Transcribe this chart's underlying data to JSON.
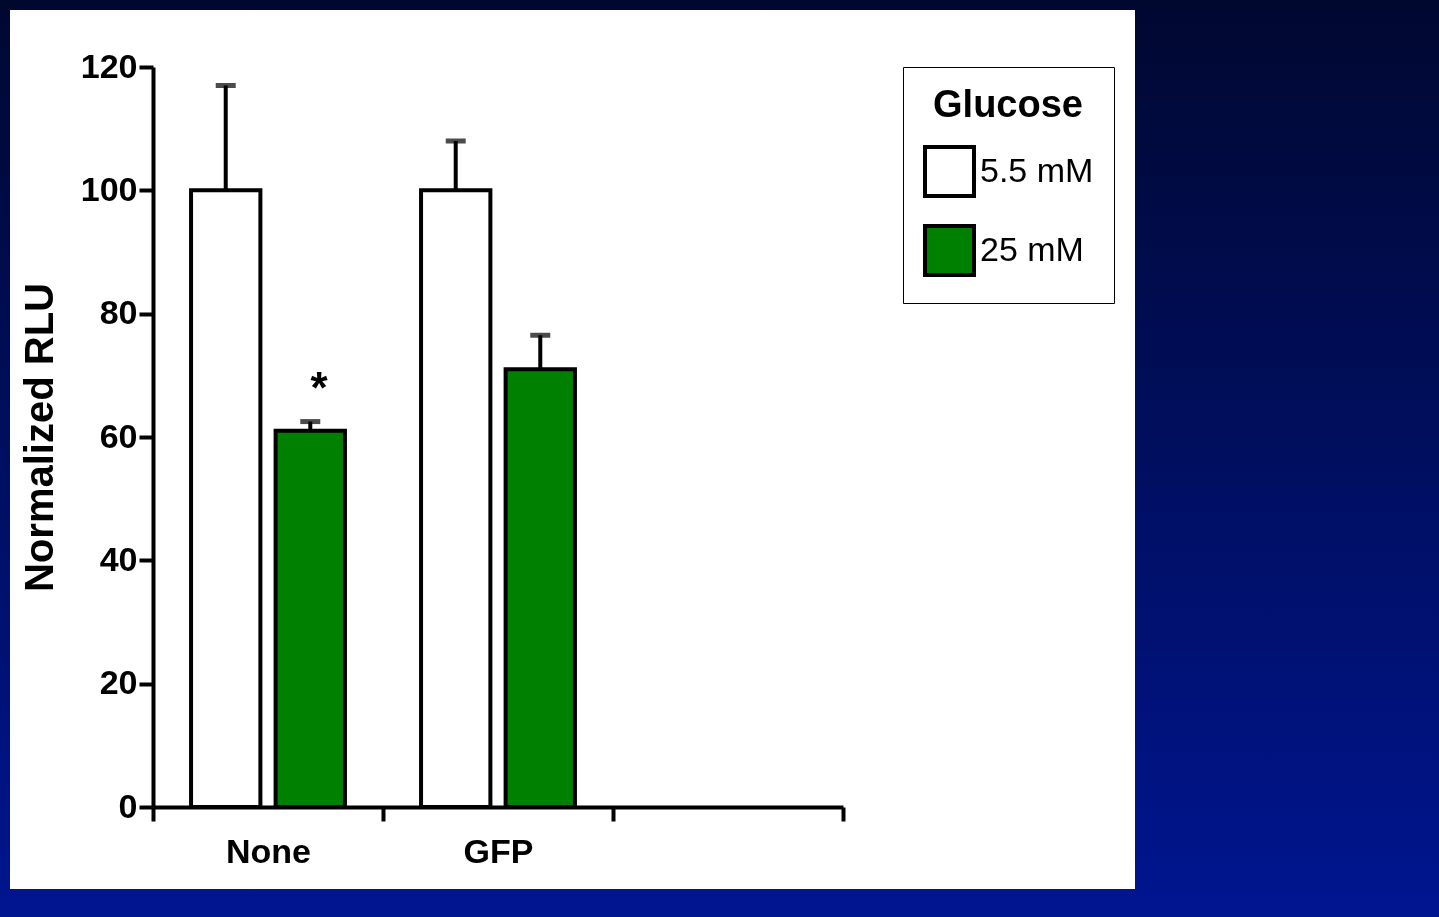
{
  "chart_data": {
    "type": "bar",
    "ylabel": "Normalized RLU",
    "legend_title": "Glucose",
    "categories": [
      "None",
      "GFP",
      null
    ],
    "series": [
      {
        "name": "5.5 mM",
        "color": "#ffffff",
        "values": [
          100,
          100,
          null
        ],
        "errors": [
          [
            100,
            117
          ],
          [
            100,
            108
          ],
          null
        ]
      },
      {
        "name": "25 mM",
        "color": "#008000",
        "values": [
          61,
          71,
          null
        ],
        "errors": [
          [
            61,
            62.5
          ],
          [
            71,
            76.5
          ],
          null
        ]
      }
    ],
    "ylim": [
      0,
      120
    ],
    "yticks": [
      0,
      20,
      40,
      60,
      80,
      100,
      120
    ],
    "grid": false,
    "legend": "top right",
    "annotations": [
      "*"
    ]
  }
}
